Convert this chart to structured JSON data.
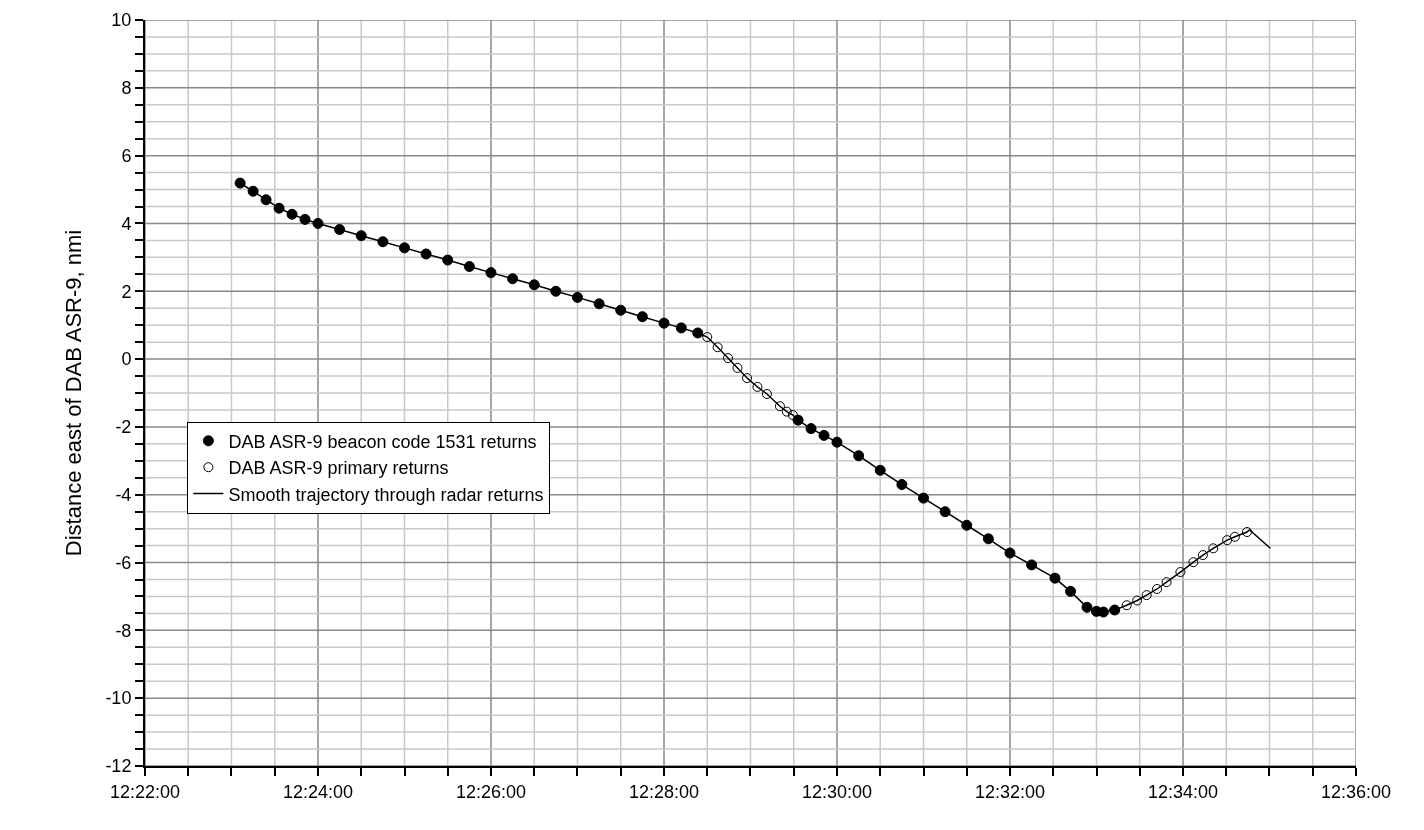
{
  "chart_data": {
    "type": "line",
    "ylabel": "Distance east of DAB ASR-9, nmi",
    "xlim": [
      12.36667,
      12.6
    ],
    "ylim": [
      -12,
      10
    ],
    "xticks": [
      {
        "value": 12.36667,
        "label": "12:22:00"
      },
      {
        "value": 12.375,
        "label": null
      },
      {
        "value": 12.38333,
        "label": null
      },
      {
        "value": 12.39167,
        "label": null
      },
      {
        "value": 12.4,
        "label": "12:24:00"
      },
      {
        "value": 12.40833,
        "label": null
      },
      {
        "value": 12.41667,
        "label": null
      },
      {
        "value": 12.425,
        "label": null
      },
      {
        "value": 12.43333,
        "label": "12:26:00"
      },
      {
        "value": 12.44167,
        "label": null
      },
      {
        "value": 12.45,
        "label": null
      },
      {
        "value": 12.45833,
        "label": null
      },
      {
        "value": 12.46667,
        "label": "12:28:00"
      },
      {
        "value": 12.475,
        "label": null
      },
      {
        "value": 12.48333,
        "label": null
      },
      {
        "value": 12.49167,
        "label": null
      },
      {
        "value": 12.5,
        "label": "12:30:00"
      },
      {
        "value": 12.50833,
        "label": null
      },
      {
        "value": 12.51667,
        "label": null
      },
      {
        "value": 12.525,
        "label": null
      },
      {
        "value": 12.53333,
        "label": "12:32:00"
      },
      {
        "value": 12.54167,
        "label": null
      },
      {
        "value": 12.55,
        "label": null
      },
      {
        "value": 12.55833,
        "label": null
      },
      {
        "value": 12.56667,
        "label": "12:34:00"
      },
      {
        "value": 12.575,
        "label": null
      },
      {
        "value": 12.58333,
        "label": null
      },
      {
        "value": 12.59167,
        "label": null
      },
      {
        "value": 12.6,
        "label": "12:36:00"
      }
    ],
    "yticks": [
      -12,
      {
        "value": -11.5,
        "label": null
      },
      {
        "value": -11,
        "label": null
      },
      {
        "value": -10.5,
        "label": null
      },
      -10,
      {
        "value": -9.5,
        "label": null
      },
      {
        "value": -9,
        "label": null
      },
      {
        "value": -8.5,
        "label": null
      },
      -8,
      {
        "value": -7.5,
        "label": null
      },
      {
        "value": -7,
        "label": null
      },
      {
        "value": -6.5,
        "label": null
      },
      -6,
      {
        "value": -5.5,
        "label": null
      },
      {
        "value": -5,
        "label": null
      },
      {
        "value": -4.5,
        "label": null
      },
      -4,
      {
        "value": -3.5,
        "label": null
      },
      {
        "value": -3,
        "label": null
      },
      {
        "value": -2.5,
        "label": null
      },
      -2,
      {
        "value": -1.5,
        "label": null
      },
      {
        "value": -1,
        "label": null
      },
      {
        "value": -0.5,
        "label": null
      },
      0,
      {
        "value": 0.5,
        "label": null
      },
      {
        "value": 1,
        "label": null
      },
      {
        "value": 1.5,
        "label": null
      },
      2,
      {
        "value": 2.5,
        "label": null
      },
      {
        "value": 3,
        "label": null
      },
      {
        "value": 3.5,
        "label": null
      },
      4,
      {
        "value": 4.5,
        "label": null
      },
      {
        "value": 5,
        "label": null
      },
      {
        "value": 5.5,
        "label": null
      },
      6,
      {
        "value": 6.5,
        "label": null
      },
      {
        "value": 7,
        "label": null
      },
      {
        "value": 7.5,
        "label": null
      },
      8,
      {
        "value": 8.5,
        "label": null
      },
      {
        "value": 9,
        "label": null
      },
      {
        "value": 9.5,
        "label": null
      },
      10
    ],
    "grid": true,
    "legend": "left",
    "series": [
      {
        "name": "DAB ASR-9 beacon code 1531 returns",
        "type": "scatter",
        "marker": "circle",
        "color": "#000000",
        "x": [
          12.385,
          12.3875,
          12.39,
          12.3925,
          12.395,
          12.3975,
          12.4,
          12.40417,
          12.40833,
          12.4125,
          12.41667,
          12.42083,
          12.425,
          12.42917,
          12.43333,
          12.4375,
          12.44167,
          12.44583,
          12.45,
          12.45417,
          12.45833,
          12.4625,
          12.46667,
          12.47,
          12.47317,
          12.4925,
          12.495,
          12.4975,
          12.5,
          12.50417,
          12.50833,
          12.5125,
          12.51667,
          12.52083,
          12.525,
          12.52917,
          12.53333,
          12.5375,
          12.542,
          12.545,
          12.54817,
          12.55,
          12.55133,
          12.5535
        ],
        "values": [
          5.19,
          4.95,
          4.7,
          4.45,
          4.27,
          4.12,
          4.0,
          3.82,
          3.64,
          3.46,
          3.28,
          3.1,
          2.92,
          2.73,
          2.55,
          2.37,
          2.19,
          2.0,
          1.82,
          1.63,
          1.44,
          1.25,
          1.06,
          0.92,
          0.77,
          -1.8,
          -2.05,
          -2.25,
          -2.45,
          -2.85,
          -3.28,
          -3.7,
          -4.1,
          -4.5,
          -4.9,
          -5.3,
          -5.72,
          -6.07,
          -6.46,
          -6.85,
          -7.32,
          -7.44,
          -7.46,
          -7.4
        ]
      },
      {
        "name": "DAB ASR-9 primary returns",
        "type": "scatter",
        "marker": "circle-open",
        "color": "#000000",
        "x": [
          12.475,
          12.477,
          12.479,
          12.48083,
          12.48267,
          12.48467,
          12.4865,
          12.489,
          12.49033,
          12.4915,
          12.55583,
          12.55783,
          12.55967,
          12.56167,
          12.5635,
          12.56617,
          12.56867,
          12.5705,
          12.5725,
          12.57517,
          12.57667,
          12.579
        ],
        "values": [
          0.65,
          0.35,
          0.03,
          -0.26,
          -0.56,
          -0.82,
          -1.03,
          -1.39,
          -1.55,
          -1.65,
          -7.26,
          -7.12,
          -6.96,
          -6.78,
          -6.58,
          -6.28,
          -5.99,
          -5.78,
          -5.58,
          -5.34,
          -5.24,
          -5.1
        ]
      },
      {
        "name": "Smooth trajectory through radar returns",
        "marker": "none",
        "line_style": "solid",
        "color": "#000000",
        "x": [
          12.385,
          12.3875,
          12.39,
          12.3925,
          12.395,
          12.3975,
          12.4,
          12.40417,
          12.40833,
          12.4125,
          12.41667,
          12.42083,
          12.425,
          12.42917,
          12.43333,
          12.4375,
          12.44167,
          12.44583,
          12.45,
          12.45417,
          12.45833,
          12.4625,
          12.46667,
          12.47,
          12.47317,
          12.475,
          12.477,
          12.479,
          12.48083,
          12.48267,
          12.48467,
          12.4865,
          12.489,
          12.49033,
          12.4915,
          12.4925,
          12.495,
          12.4975,
          12.5,
          12.50417,
          12.50833,
          12.5125,
          12.51667,
          12.52083,
          12.525,
          12.52917,
          12.53333,
          12.5375,
          12.542,
          12.545,
          12.54817,
          12.55,
          12.55133,
          12.5535,
          12.55583,
          12.55783,
          12.55967,
          12.56167,
          12.5635,
          12.56617,
          12.56867,
          12.5705,
          12.5725,
          12.57517,
          12.57667,
          12.579,
          12.5795,
          12.5835
        ],
        "values": [
          5.19,
          4.95,
          4.7,
          4.45,
          4.27,
          4.12,
          4.0,
          3.82,
          3.64,
          3.46,
          3.28,
          3.1,
          2.92,
          2.73,
          2.55,
          2.37,
          2.19,
          2.0,
          1.82,
          1.63,
          1.44,
          1.25,
          1.06,
          0.92,
          0.77,
          0.65,
          0.35,
          0.03,
          -0.26,
          -0.56,
          -0.82,
          -1.03,
          -1.39,
          -1.55,
          -1.65,
          -1.8,
          -2.05,
          -2.25,
          -2.45,
          -2.85,
          -3.28,
          -3.7,
          -4.1,
          -4.5,
          -4.9,
          -5.3,
          -5.72,
          -6.07,
          -6.46,
          -6.85,
          -7.32,
          -7.44,
          -7.46,
          -7.4,
          -7.26,
          -7.12,
          -6.96,
          -6.78,
          -6.58,
          -6.28,
          -5.99,
          -5.78,
          -5.58,
          -5.34,
          -5.24,
          -5.1,
          -5.04,
          -5.58
        ]
      }
    ]
  }
}
